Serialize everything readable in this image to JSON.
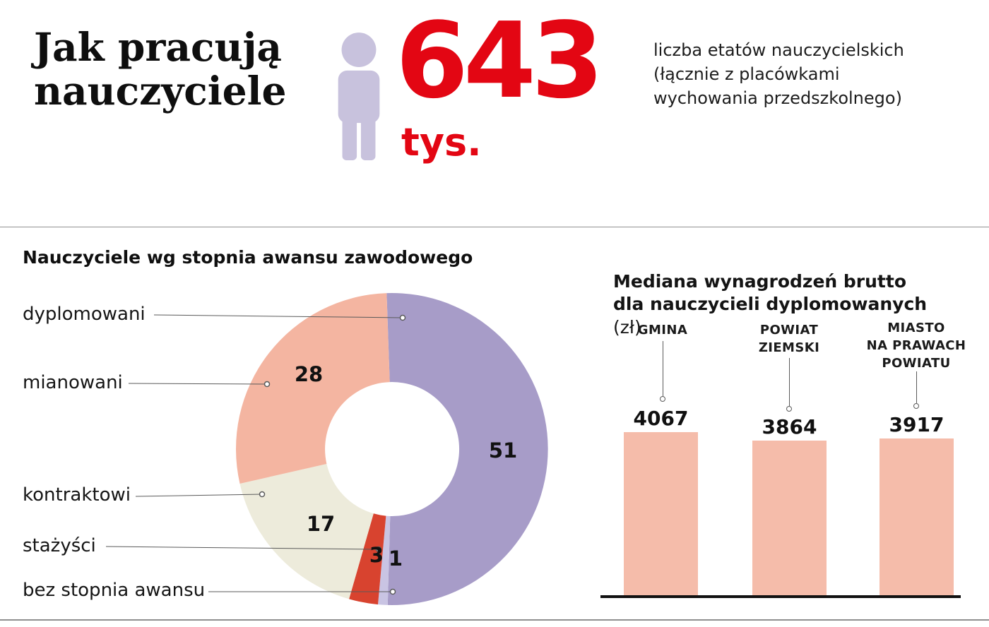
{
  "header": {
    "title": "Jak pracują\nnauczyciele",
    "big_number": "643",
    "unit": "tys.",
    "note": "liczba etatów nauczycielskich\n(łącznie z placówkami\nwychowania przedszkolnego)",
    "accent_color": "#e30613",
    "person_icon_color": "#c8c2dd"
  },
  "chart_data": [
    {
      "type": "pie",
      "donut": true,
      "title": "Nauczyciele wg stopnia awansu zawodowego",
      "categories": [
        "dyplomowani",
        "mianowani",
        "kontraktowi",
        "stażyści",
        "bez stopnia awansu"
      ],
      "values": [
        51,
        28,
        17,
        3,
        1
      ],
      "colors": [
        "#a79cc8",
        "#f4b5a1",
        "#edebdb",
        "#d8432f",
        "#c9c4e3"
      ]
    },
    {
      "type": "bar",
      "title_bold": "Mediana wynagrodzeń brutto\ndla nauczycieli dyplomowanych",
      "title_unit": "(zł)",
      "categories": [
        "GMINA",
        "POWIAT ZIEMSKI",
        "MIASTO NA PRAWACH POWIATU"
      ],
      "category_display": [
        "GMINA",
        "POWIAT\nZIEMSKI",
        "MIASTO\nNA PRAWACH\nPOWIATU"
      ],
      "values": [
        4067,
        3864,
        3917
      ],
      "bar_color": "#f5bcaa",
      "baseline_color": "#111111",
      "legend": "none",
      "grid": "off"
    }
  ]
}
